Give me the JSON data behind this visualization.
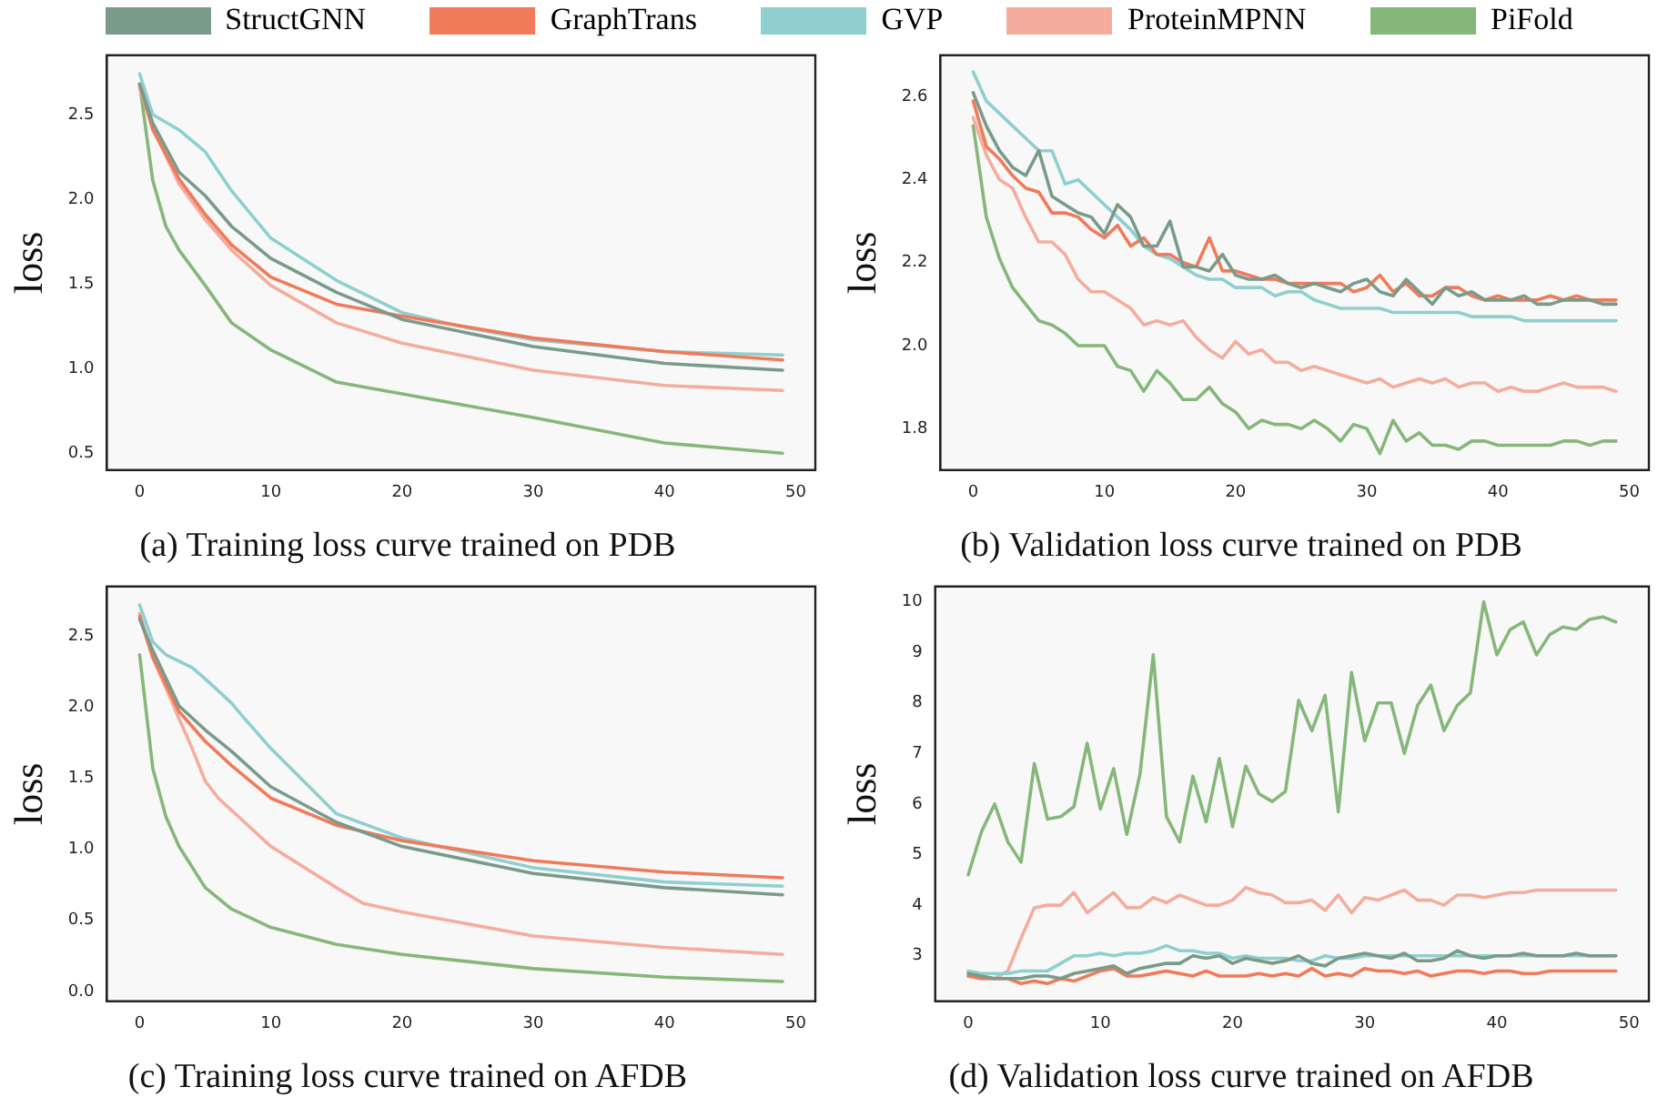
{
  "chart_data": [
    {
      "type": "line",
      "title": "(a) Training loss curve trained on PDB",
      "ylabel": "loss",
      "legend": "top",
      "marker": "none",
      "line_style": "solid",
      "xlim": [
        -2.5,
        51.5
      ],
      "xticks": [
        0,
        10,
        20,
        30,
        40,
        50
      ],
      "ylim": [
        0.4,
        2.85
      ],
      "yticks": [
        {
          "value": 0.5,
          "label": "0.5"
        },
        {
          "value": 1,
          "label": "1.0"
        },
        {
          "value": 1.5,
          "label": "1.5"
        },
        {
          "value": 2,
          "label": "2.0"
        },
        {
          "value": 2.5,
          "label": "2.5"
        }
      ],
      "series": [
        {
          "name": "StructGNN",
          "color": "#7a9a8a",
          "x": [
            0,
            1,
            3,
            5,
            7,
            10,
            15,
            20,
            30,
            40,
            49
          ],
          "values": [
            2.68,
            2.45,
            2.16,
            2.02,
            1.84,
            1.65,
            1.45,
            1.29,
            1.13,
            1.03,
            0.99
          ]
        },
        {
          "name": "GraphTrans",
          "color": "#f07a5a",
          "x": [
            0,
            1,
            3,
            5,
            7,
            10,
            15,
            20,
            30,
            40,
            49
          ],
          "values": [
            2.68,
            2.41,
            2.12,
            1.91,
            1.73,
            1.54,
            1.38,
            1.31,
            1.18,
            1.1,
            1.05
          ]
        },
        {
          "name": "GVP",
          "color": "#8fcfcf",
          "x": [
            0,
            1,
            3,
            5,
            7,
            10,
            15,
            20,
            25,
            30,
            40,
            49
          ],
          "values": [
            2.74,
            2.5,
            2.41,
            2.28,
            2.05,
            1.77,
            1.52,
            1.33,
            1.24,
            1.17,
            1.1,
            1.08
          ]
        },
        {
          "name": "ProteinMPNN",
          "color": "#f4ad9c",
          "x": [
            0,
            1,
            3,
            5,
            7,
            10,
            15,
            20,
            30,
            40,
            49
          ],
          "values": [
            2.66,
            2.42,
            2.09,
            1.88,
            1.7,
            1.49,
            1.27,
            1.15,
            0.99,
            0.9,
            0.87
          ]
        },
        {
          "name": "PiFold",
          "color": "#86b77a",
          "x": [
            0,
            1,
            2,
            3,
            5,
            7,
            10,
            15,
            20,
            30,
            40,
            49
          ],
          "values": [
            2.68,
            2.11,
            1.84,
            1.7,
            1.49,
            1.27,
            1.11,
            0.92,
            0.85,
            0.71,
            0.56,
            0.5
          ]
        }
      ]
    },
    {
      "type": "line",
      "title": "(b) Validation loss curve trained on PDB",
      "ylabel": "loss",
      "marker": "none",
      "line_style": "solid",
      "xlim": [
        -2.5,
        51.5
      ],
      "xticks": [
        0,
        10,
        20,
        30,
        40,
        50
      ],
      "ylim": [
        1.7,
        2.7
      ],
      "yticks": [
        {
          "value": 1.8,
          "label": "1.8"
        },
        {
          "value": 2,
          "label": "2.0"
        },
        {
          "value": 2.2,
          "label": "2.2"
        },
        {
          "value": 2.4,
          "label": "2.4"
        },
        {
          "value": 2.6,
          "label": "2.6"
        }
      ],
      "x": [
        0,
        1,
        2,
        3,
        4,
        5,
        6,
        7,
        8,
        9,
        10,
        11,
        12,
        13,
        14,
        15,
        16,
        17,
        18,
        19,
        20,
        21,
        22,
        23,
        24,
        25,
        26,
        27,
        28,
        29,
        30,
        31,
        32,
        33,
        34,
        35,
        36,
        37,
        38,
        39,
        40,
        41,
        42,
        43,
        44,
        45,
        46,
        47,
        48,
        49
      ],
      "series": [
        {
          "color": "#7a9a8a",
          "values": [
            2.61,
            2.53,
            2.47,
            2.43,
            2.41,
            2.47,
            2.36,
            2.34,
            2.32,
            2.31,
            2.27,
            2.34,
            2.31,
            2.24,
            2.24,
            2.3,
            2.19,
            2.19,
            2.18,
            2.22,
            2.17,
            2.16,
            2.16,
            2.17,
            2.15,
            2.14,
            2.15,
            2.14,
            2.13,
            2.15,
            2.16,
            2.13,
            2.12,
            2.16,
            2.13,
            2.1,
            2.14,
            2.12,
            2.13,
            2.11,
            2.11,
            2.11,
            2.12,
            2.1,
            2.1,
            2.11,
            2.11,
            2.11,
            2.1,
            2.1
          ]
        },
        {
          "color": "#f07a5a",
          "values": [
            2.59,
            2.48,
            2.45,
            2.41,
            2.38,
            2.37,
            2.32,
            2.32,
            2.31,
            2.28,
            2.26,
            2.29,
            2.24,
            2.26,
            2.22,
            2.22,
            2.2,
            2.19,
            2.26,
            2.18,
            2.18,
            2.17,
            2.16,
            2.16,
            2.15,
            2.15,
            2.15,
            2.15,
            2.15,
            2.13,
            2.14,
            2.17,
            2.13,
            2.15,
            2.12,
            2.12,
            2.14,
            2.14,
            2.12,
            2.11,
            2.12,
            2.11,
            2.11,
            2.11,
            2.12,
            2.11,
            2.12,
            2.11,
            2.11,
            2.11
          ]
        },
        {
          "color": "#8fcfcf",
          "values": [
            2.66,
            2.59,
            2.56,
            2.53,
            2.5,
            2.47,
            2.47,
            2.39,
            2.4,
            2.37,
            2.34,
            2.31,
            2.28,
            2.24,
            2.22,
            2.21,
            2.19,
            2.17,
            2.16,
            2.16,
            2.14,
            2.14,
            2.14,
            2.12,
            2.13,
            2.13,
            2.11,
            2.1,
            2.09,
            2.09,
            2.09,
            2.09,
            2.08,
            2.08,
            2.08,
            2.08,
            2.08,
            2.08,
            2.07,
            2.07,
            2.07,
            2.07,
            2.06,
            2.06,
            2.06,
            2.06,
            2.06,
            2.06,
            2.06,
            2.06
          ]
        },
        {
          "color": "#f4ad9c",
          "values": [
            2.55,
            2.46,
            2.4,
            2.38,
            2.31,
            2.25,
            2.25,
            2.22,
            2.16,
            2.13,
            2.13,
            2.11,
            2.09,
            2.05,
            2.06,
            2.05,
            2.06,
            2.02,
            1.99,
            1.97,
            2.01,
            1.98,
            1.99,
            1.96,
            1.96,
            1.94,
            1.95,
            1.94,
            1.93,
            1.92,
            1.91,
            1.92,
            1.9,
            1.91,
            1.92,
            1.91,
            1.92,
            1.9,
            1.91,
            1.91,
            1.89,
            1.9,
            1.89,
            1.89,
            1.9,
            1.91,
            1.9,
            1.9,
            1.9,
            1.89
          ]
        },
        {
          "color": "#86b77a",
          "values": [
            2.53,
            2.31,
            2.21,
            2.14,
            2.1,
            2.06,
            2.05,
            2.03,
            2.0,
            2.0,
            2.0,
            1.95,
            1.94,
            1.89,
            1.94,
            1.91,
            1.87,
            1.87,
            1.9,
            1.86,
            1.84,
            1.8,
            1.82,
            1.81,
            1.81,
            1.8,
            1.82,
            1.8,
            1.77,
            1.81,
            1.8,
            1.74,
            1.82,
            1.77,
            1.79,
            1.76,
            1.76,
            1.75,
            1.77,
            1.77,
            1.76,
            1.76,
            1.76,
            1.76,
            1.76,
            1.77,
            1.77,
            1.76,
            1.77,
            1.77
          ]
        }
      ]
    },
    {
      "type": "line",
      "title": "(c) Training loss curve trained on AFDB",
      "ylabel": "loss",
      "marker": "none",
      "line_style": "solid",
      "xlim": [
        -2.5,
        51.5
      ],
      "xticks": [
        0,
        10,
        20,
        30,
        40,
        50
      ],
      "ylim": [
        -0.07,
        2.85
      ],
      "yticks": [
        {
          "value": 0,
          "label": "0.0"
        },
        {
          "value": 0.5,
          "label": "0.5"
        },
        {
          "value": 1,
          "label": "1.0"
        },
        {
          "value": 1.5,
          "label": "1.5"
        },
        {
          "value": 2,
          "label": "2.0"
        },
        {
          "value": 2.5,
          "label": "2.5"
        }
      ],
      "series": [
        {
          "color": "#7a9a8a",
          "x": [
            0,
            1,
            3,
            5,
            7,
            10,
            15,
            20,
            30,
            40,
            49
          ],
          "values": [
            2.62,
            2.4,
            2.01,
            1.84,
            1.69,
            1.44,
            1.19,
            1.02,
            0.83,
            0.73,
            0.68
          ]
        },
        {
          "color": "#f07a5a",
          "x": [
            0,
            1,
            3,
            5,
            7,
            10,
            15,
            20,
            30,
            40,
            49
          ],
          "values": [
            2.64,
            2.35,
            1.97,
            1.76,
            1.59,
            1.36,
            1.17,
            1.06,
            0.92,
            0.84,
            0.8
          ]
        },
        {
          "color": "#8fcfcf",
          "x": [
            0,
            1,
            2,
            4,
            5,
            7,
            8,
            10,
            15,
            20,
            30,
            40,
            49
          ],
          "values": [
            2.72,
            2.46,
            2.37,
            2.28,
            2.2,
            2.03,
            1.92,
            1.71,
            1.25,
            1.08,
            0.87,
            0.77,
            0.74
          ]
        },
        {
          "color": "#f4ad9c",
          "x": [
            0,
            1,
            3,
            4,
            5,
            6,
            8,
            10,
            15,
            17,
            20,
            30,
            40,
            49
          ],
          "values": [
            2.66,
            2.35,
            1.92,
            1.71,
            1.48,
            1.36,
            1.19,
            1.02,
            0.73,
            0.62,
            0.56,
            0.39,
            0.31,
            0.26
          ]
        },
        {
          "color": "#86b77a",
          "x": [
            0,
            1,
            2,
            3,
            5,
            7,
            10,
            15,
            20,
            30,
            40,
            49
          ],
          "values": [
            2.37,
            1.57,
            1.23,
            1.02,
            0.73,
            0.58,
            0.45,
            0.33,
            0.26,
            0.16,
            0.1,
            0.07
          ]
        }
      ]
    },
    {
      "type": "line",
      "title": "(d) Validation loss curve trained on AFDB",
      "ylabel": "loss",
      "marker": "none",
      "line_style": "solid",
      "xlim": [
        -2.5,
        51.5
      ],
      "xticks": [
        0,
        10,
        20,
        30,
        40,
        50
      ],
      "ylim": [
        2.1,
        10.3
      ],
      "yticks": [
        3,
        4,
        5,
        6,
        7,
        8,
        9,
        10
      ],
      "x": [
        0,
        1,
        2,
        3,
        4,
        5,
        6,
        7,
        8,
        9,
        10,
        11,
        12,
        13,
        14,
        15,
        16,
        17,
        18,
        19,
        20,
        21,
        22,
        23,
        24,
        25,
        26,
        27,
        28,
        29,
        30,
        31,
        32,
        33,
        34,
        35,
        36,
        37,
        38,
        39,
        40,
        41,
        42,
        43,
        44,
        45,
        46,
        47,
        48,
        49
      ],
      "series": [
        {
          "color": "#7a9a8a",
          "values": [
            2.65,
            2.6,
            2.55,
            2.55,
            2.55,
            2.6,
            2.6,
            2.55,
            2.65,
            2.7,
            2.75,
            2.8,
            2.65,
            2.75,
            2.8,
            2.85,
            2.85,
            3.0,
            2.95,
            3.0,
            2.85,
            2.95,
            2.9,
            2.85,
            2.9,
            3.0,
            2.85,
            2.8,
            2.95,
            3.0,
            3.05,
            3.0,
            2.95,
            3.05,
            2.9,
            2.9,
            2.95,
            3.1,
            3.0,
            2.95,
            3.0,
            3.0,
            3.05,
            3.0,
            3.0,
            3.0,
            3.05,
            3.0,
            3.0,
            3.0
          ]
        },
        {
          "color": "#f07a5a",
          "values": [
            2.6,
            2.55,
            2.55,
            2.55,
            2.45,
            2.5,
            2.45,
            2.55,
            2.5,
            2.6,
            2.7,
            2.75,
            2.6,
            2.6,
            2.65,
            2.7,
            2.65,
            2.6,
            2.7,
            2.6,
            2.6,
            2.6,
            2.65,
            2.6,
            2.65,
            2.6,
            2.75,
            2.6,
            2.65,
            2.6,
            2.75,
            2.7,
            2.7,
            2.65,
            2.7,
            2.6,
            2.65,
            2.7,
            2.7,
            2.65,
            2.7,
            2.7,
            2.65,
            2.65,
            2.7,
            2.7,
            2.7,
            2.7,
            2.7,
            2.7
          ]
        },
        {
          "color": "#8fcfcf",
          "values": [
            2.7,
            2.65,
            2.65,
            2.65,
            2.7,
            2.7,
            2.7,
            2.85,
            3.0,
            3.0,
            3.05,
            3.0,
            3.05,
            3.05,
            3.1,
            3.2,
            3.1,
            3.1,
            3.05,
            3.05,
            2.95,
            3.0,
            2.95,
            2.95,
            2.95,
            2.9,
            2.9,
            3.0,
            2.95,
            2.95,
            3.0,
            3.0,
            3.0,
            3.0,
            3.0,
            3.0,
            3.0,
            3.0,
            3.0,
            3.0,
            3.0,
            3.0,
            3.0,
            3.0,
            3.0,
            3.0,
            3.0,
            3.0,
            3.0,
            3.0
          ]
        },
        {
          "color": "#f4ad9c",
          "values": [
            2.6,
            2.55,
            2.55,
            2.7,
            3.35,
            3.95,
            4.0,
            4.0,
            4.25,
            3.85,
            4.05,
            4.25,
            3.95,
            3.95,
            4.15,
            4.05,
            4.2,
            4.1,
            4.0,
            4.0,
            4.1,
            4.35,
            4.25,
            4.2,
            4.05,
            4.05,
            4.1,
            3.9,
            4.2,
            3.85,
            4.15,
            4.1,
            4.2,
            4.3,
            4.1,
            4.1,
            4.0,
            4.2,
            4.2,
            4.15,
            4.2,
            4.25,
            4.25,
            4.3,
            4.3,
            4.3,
            4.3,
            4.3,
            4.3,
            4.3
          ]
        },
        {
          "color": "#86b77a",
          "values": [
            4.6,
            5.45,
            6.0,
            5.25,
            4.85,
            6.8,
            5.7,
            5.75,
            5.95,
            7.2,
            5.9,
            6.7,
            5.4,
            6.6,
            8.95,
            5.75,
            5.25,
            6.55,
            5.65,
            6.9,
            5.55,
            6.75,
            6.2,
            6.05,
            6.25,
            8.05,
            7.45,
            8.15,
            5.85,
            8.6,
            7.25,
            8.0,
            8.0,
            7.0,
            7.95,
            8.35,
            7.45,
            7.95,
            8.2,
            10.0,
            8.95,
            9.45,
            9.6,
            8.95,
            9.35,
            9.5,
            9.45,
            9.65,
            9.7,
            9.6
          ]
        }
      ]
    }
  ]
}
